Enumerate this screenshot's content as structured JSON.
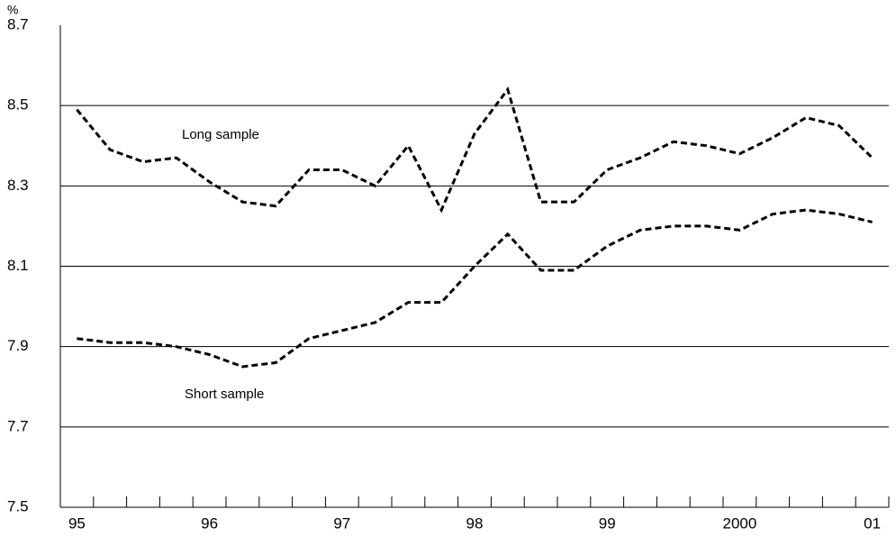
{
  "chart_data": {
    "type": "line",
    "y_unit": "%",
    "categories": [
      "95",
      null,
      null,
      null,
      "96",
      null,
      null,
      null,
      "97",
      null,
      null,
      null,
      "98",
      null,
      null,
      null,
      "99",
      null,
      null,
      null,
      "2000",
      null,
      null,
      null,
      "01"
    ],
    "series": [
      {
        "name": "Long sample",
        "color": "#000000",
        "values": [
          8.49,
          8.39,
          8.36,
          8.37,
          8.31,
          8.26,
          8.25,
          8.34,
          8.34,
          8.3,
          8.4,
          8.24,
          8.43,
          8.54,
          8.26,
          8.26,
          8.34,
          8.37,
          8.41,
          8.4,
          8.38,
          8.42,
          8.47,
          8.45,
          8.37
        ]
      },
      {
        "name": "Short sample",
        "color": "#000000",
        "values": [
          7.92,
          7.91,
          7.91,
          7.9,
          7.88,
          7.85,
          7.86,
          7.92,
          7.94,
          7.96,
          8.01,
          8.01,
          8.1,
          8.18,
          8.09,
          8.09,
          8.15,
          8.19,
          8.2,
          8.2,
          8.19,
          8.23,
          8.24,
          8.23,
          8.21
        ]
      }
    ],
    "ylim": [
      7.5,
      8.7
    ],
    "yticks": [
      7.5,
      7.7,
      7.9,
      8.1,
      8.3,
      8.5,
      8.7
    ],
    "grid": true,
    "line_style": "dashed"
  }
}
